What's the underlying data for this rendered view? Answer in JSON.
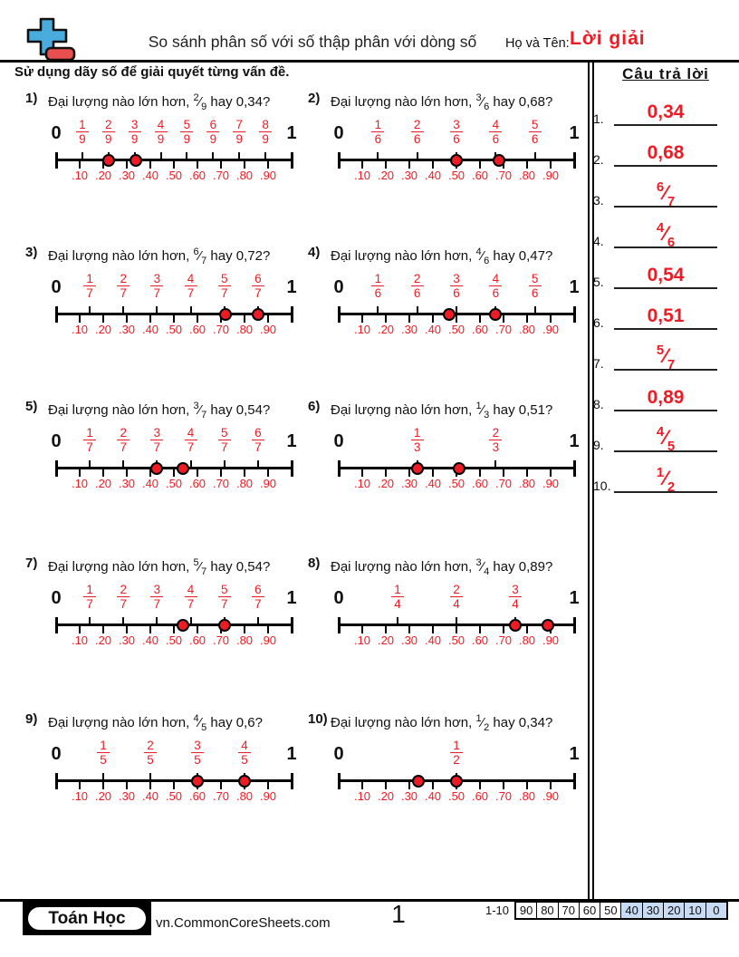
{
  "colors": {
    "red": "#ed1c24",
    "logo_blue": "#4aabdd",
    "logo_red": "#e85050",
    "score_highlight": "#c9daf3"
  },
  "header": {
    "logo": "plus-minus-icon",
    "title": "So sánh phân số với số thập phân với dòng số",
    "name_label": "Họ và Tên:",
    "name_value": "Lời giải",
    "instruction": "Sử dụng dãy số để giải quyết từng vấn đề."
  },
  "answers": {
    "title": "Câu trả lời",
    "items": [
      {
        "num": "1.",
        "type": "decimal",
        "text": "0,34"
      },
      {
        "num": "2.",
        "type": "decimal",
        "text": "0,68"
      },
      {
        "num": "3.",
        "type": "fraction",
        "numerator": "6",
        "denominator": "7"
      },
      {
        "num": "4.",
        "type": "fraction",
        "numerator": "4",
        "denominator": "6"
      },
      {
        "num": "5.",
        "type": "decimal",
        "text": "0,54"
      },
      {
        "num": "6.",
        "type": "decimal",
        "text": "0,51"
      },
      {
        "num": "7.",
        "type": "fraction",
        "numerator": "5",
        "denominator": "7"
      },
      {
        "num": "8.",
        "type": "decimal",
        "text": "0,89"
      },
      {
        "num": "9.",
        "type": "fraction",
        "numerator": "4",
        "denominator": "5"
      },
      {
        "num": "10.",
        "type": "fraction",
        "numerator": "1",
        "denominator": "2"
      }
    ]
  },
  "question_prefix": "Đại lượng nào lớn hơn,",
  "question_connector": "hay",
  "decimal_tick_labels": [
    ".10",
    ".20",
    ".30",
    ".40",
    ".50",
    ".60",
    ".70",
    ".80",
    ".90"
  ],
  "line_start_label": "0",
  "line_end_label": "1",
  "problems": [
    {
      "number": "1)",
      "fraction": {
        "numerator": "2",
        "denominator": "9"
      },
      "decimal_text": "0,34?",
      "den": 9,
      "dots": [
        0.2222,
        0.34
      ]
    },
    {
      "number": "2)",
      "fraction": {
        "numerator": "3",
        "denominator": "6"
      },
      "decimal_text": "0,68?",
      "den": 6,
      "dots": [
        0.5,
        0.68
      ]
    },
    {
      "number": "3)",
      "fraction": {
        "numerator": "6",
        "denominator": "7"
      },
      "decimal_text": "0,72?",
      "den": 7,
      "dots": [
        0.72,
        0.8571
      ]
    },
    {
      "number": "4)",
      "fraction": {
        "numerator": "4",
        "denominator": "6"
      },
      "decimal_text": "0,47?",
      "den": 6,
      "dots": [
        0.47,
        0.6667
      ]
    },
    {
      "number": "5)",
      "fraction": {
        "numerator": "3",
        "denominator": "7"
      },
      "decimal_text": "0,54?",
      "den": 7,
      "dots": [
        0.4286,
        0.54
      ]
    },
    {
      "number": "6)",
      "fraction": {
        "numerator": "1",
        "denominator": "3"
      },
      "decimal_text": "0,51?",
      "den": 3,
      "dots": [
        0.3333,
        0.51
      ]
    },
    {
      "number": "7)",
      "fraction": {
        "numerator": "5",
        "denominator": "7"
      },
      "decimal_text": "0,54?",
      "den": 7,
      "dots": [
        0.54,
        0.7143
      ]
    },
    {
      "number": "8)",
      "fraction": {
        "numerator": "3",
        "denominator": "4"
      },
      "decimal_text": "0,89?",
      "den": 4,
      "dots": [
        0.75,
        0.89
      ]
    },
    {
      "number": "9)",
      "fraction": {
        "numerator": "4",
        "denominator": "5"
      },
      "decimal_text": "0,6?",
      "den": 5,
      "dots": [
        0.6,
        0.8
      ]
    },
    {
      "number": "10)",
      "fraction": {
        "numerator": "1",
        "denominator": "2"
      },
      "decimal_text": "0,34?",
      "den": 2,
      "dots": [
        0.34,
        0.5
      ]
    }
  ],
  "footer": {
    "brand": "Toán Học",
    "website": "vn.CommonCoreSheets.com",
    "page_number": "1",
    "score_label": "1-10",
    "score_cells": [
      "90",
      "80",
      "70",
      "60",
      "50",
      "40",
      "30",
      "20",
      "10",
      "0"
    ],
    "score_highlight_from_index": 5
  }
}
